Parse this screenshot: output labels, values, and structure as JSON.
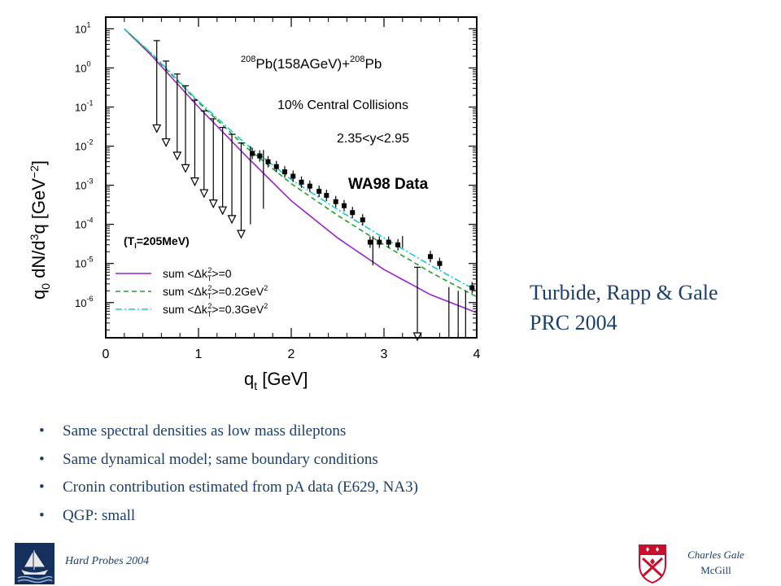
{
  "chart_data": {
    "type": "line",
    "title": "",
    "xlabel": "q_t [GeV]",
    "ylabel": "q_0 dN/d^3q [GeV^-2]",
    "xlim": [
      0,
      4
    ],
    "ylim": [
      1e-07,
      10
    ],
    "yscale": "log",
    "grid": false,
    "legend_placement": "bottom-left",
    "x_ticks": [
      "0",
      "1",
      "2",
      "3",
      "4"
    ],
    "y_ticks": [
      {
        "mant": "10",
        "exp": "1"
      },
      {
        "mant": "10",
        "exp": "0"
      },
      {
        "mant": "10",
        "exp": "-1"
      },
      {
        "mant": "10",
        "exp": "-2"
      },
      {
        "mant": "10",
        "exp": "-3"
      },
      {
        "mant": "10",
        "exp": "-4"
      },
      {
        "mant": "10",
        "exp": "-5"
      },
      {
        "mant": "10",
        "exp": "-6"
      }
    ],
    "annotations": {
      "system_sup1": "208",
      "system_mid": "Pb(158AGeV)+",
      "system_sup2": "208",
      "system_end": "Pb",
      "centrality": "10% Central Collisions",
      "rapidity": "2.35<y<2.95",
      "data_label": "WA98 Data",
      "temperature": "(T",
      "temperature_sub": "I",
      "temperature_end": "=205MeV)"
    },
    "series": [
      {
        "name": "sum <Δk_T^2>=0",
        "color": "#9b22c8",
        "dash": "solid",
        "x": [
          0.2,
          0.5,
          1.0,
          1.5,
          2.0,
          2.5,
          3.0,
          3.5,
          4.0
        ],
        "y": [
          10,
          2.0,
          0.1,
          0.006,
          0.0004,
          4.5e-05,
          7e-06,
          1.6e-06,
          5.5e-07
        ]
      },
      {
        "name": "sum <Δk_T^2>=0.2GeV^2",
        "color": "#2aa02a",
        "dash": "dashed",
        "x": [
          0.2,
          0.5,
          1.0,
          1.5,
          2.0,
          2.5,
          3.0,
          3.5,
          4.0
        ],
        "y": [
          10,
          2.2,
          0.13,
          0.01,
          0.0011,
          0.00017,
          3e-05,
          6e-06,
          1.4e-06
        ]
      },
      {
        "name": "sum <Δk_T^2>=0.3GeV^2",
        "color": "#18c8d8",
        "dash": "dashdot",
        "x": [
          0.2,
          0.5,
          1.0,
          1.5,
          2.0,
          2.5,
          3.0,
          3.5,
          4.0
        ],
        "y": [
          10,
          2.3,
          0.14,
          0.012,
          0.0014,
          0.00024,
          4.5e-05,
          9e-06,
          2e-06
        ]
      }
    ],
    "data_points": [
      {
        "x": 1.58,
        "y": 0.0065
      },
      {
        "x": 1.66,
        "y": 0.0056
      },
      {
        "x": 1.75,
        "y": 0.004
      },
      {
        "x": 1.84,
        "y": 0.003
      },
      {
        "x": 1.93,
        "y": 0.0022
      },
      {
        "x": 2.02,
        "y": 0.0017
      },
      {
        "x": 2.11,
        "y": 0.0012
      },
      {
        "x": 2.2,
        "y": 0.00095
      },
      {
        "x": 2.3,
        "y": 0.0007
      },
      {
        "x": 2.38,
        "y": 0.00055
      },
      {
        "x": 2.48,
        "y": 0.00038
      },
      {
        "x": 2.57,
        "y": 0.0003
      },
      {
        "x": 2.66,
        "y": 0.0002
      },
      {
        "x": 2.77,
        "y": 0.00013
      },
      {
        "x": 2.85,
        "y": 3.5e-05
      },
      {
        "x": 2.95,
        "y": 3.5e-05
      },
      {
        "x": 3.05,
        "y": 3.5e-05
      },
      {
        "x": 3.15,
        "y": 3e-05
      },
      {
        "x": 3.5,
        "y": 1.5e-05
      },
      {
        "x": 3.6,
        "y": 1e-05
      },
      {
        "x": 3.95,
        "y": 2.4e-06
      }
    ],
    "upper_limits": [
      {
        "x": 0.55,
        "y": 0.025,
        "top": 5
      },
      {
        "x": 0.65,
        "y": 0.011,
        "top": 1.5
      },
      {
        "x": 0.77,
        "y": 0.005,
        "top": 0.7
      },
      {
        "x": 0.86,
        "y": 0.0024,
        "top": 0.35
      },
      {
        "x": 0.96,
        "y": 0.0011,
        "top": 0.15
      },
      {
        "x": 1.06,
        "y": 0.00055,
        "top": 0.08
      },
      {
        "x": 1.16,
        "y": 0.0003,
        "top": 0.05
      },
      {
        "x": 1.26,
        "y": 0.0002,
        "top": 0.03
      },
      {
        "x": 1.36,
        "y": 0.00012,
        "top": 0.02
      },
      {
        "x": 1.46,
        "y": 5e-05,
        "top": 0.012
      },
      {
        "x": 3.36,
        "y": 1.2e-07,
        "top": 8e-06
      }
    ],
    "vertical_limits": [
      {
        "x": 1.56,
        "low": 0.0001,
        "high": 0.01
      },
      {
        "x": 1.7,
        "low": 0.00025,
        "high": 0.008
      },
      {
        "x": 2.88,
        "low": 9e-06,
        "high": 5e-05
      },
      {
        "x": 3.2,
        "low": 2.5e-05,
        "high": 5e-05
      },
      {
        "x": 3.7,
        "low": 1e-07,
        "high": 2.5e-06
      },
      {
        "x": 3.8,
        "low": 1e-07,
        "high": 2e-06
      },
      {
        "x": 3.88,
        "low": 1e-07,
        "high": 2e-06
      }
    ]
  },
  "legend": [
    {
      "prefix": "sum <Δk",
      "sub": "T",
      "sup": "2",
      "rest": ">=0",
      "unit_sup": ""
    },
    {
      "prefix": "sum <Δk",
      "sub": "T",
      "sup": "2",
      "rest": ">=0.2GeV",
      "unit_sup": "2"
    },
    {
      "prefix": "sum <Δk",
      "sub": "T",
      "sup": "2",
      "rest": ">=0.3GeV",
      "unit_sup": "2"
    }
  ],
  "axis_text": {
    "x_main": "q",
    "x_sub": "t",
    "x_rest": " [GeV]",
    "y_q": "q",
    "y_q_sub": "0",
    "y_mid": " dN",
    "y_slash": "/d",
    "y_three": "3",
    "y_after": "q  [GeV",
    "y_exp": "−2",
    "y_close": "]"
  },
  "reference": {
    "line1": "Turbide, Rapp & Gale",
    "line2": "PRC 2004"
  },
  "bullets": [
    "Same spectral densities as low mass dileptons",
    "Same dynamical model; same boundary conditions",
    "Cronin contribution estimated from pA data (E629, NA3)",
    "QGP: small"
  ],
  "bullet_symbol": "•",
  "footer": {
    "left": "Hard Probes 2004",
    "author": "Charles Gale",
    "institution": "McGill"
  }
}
